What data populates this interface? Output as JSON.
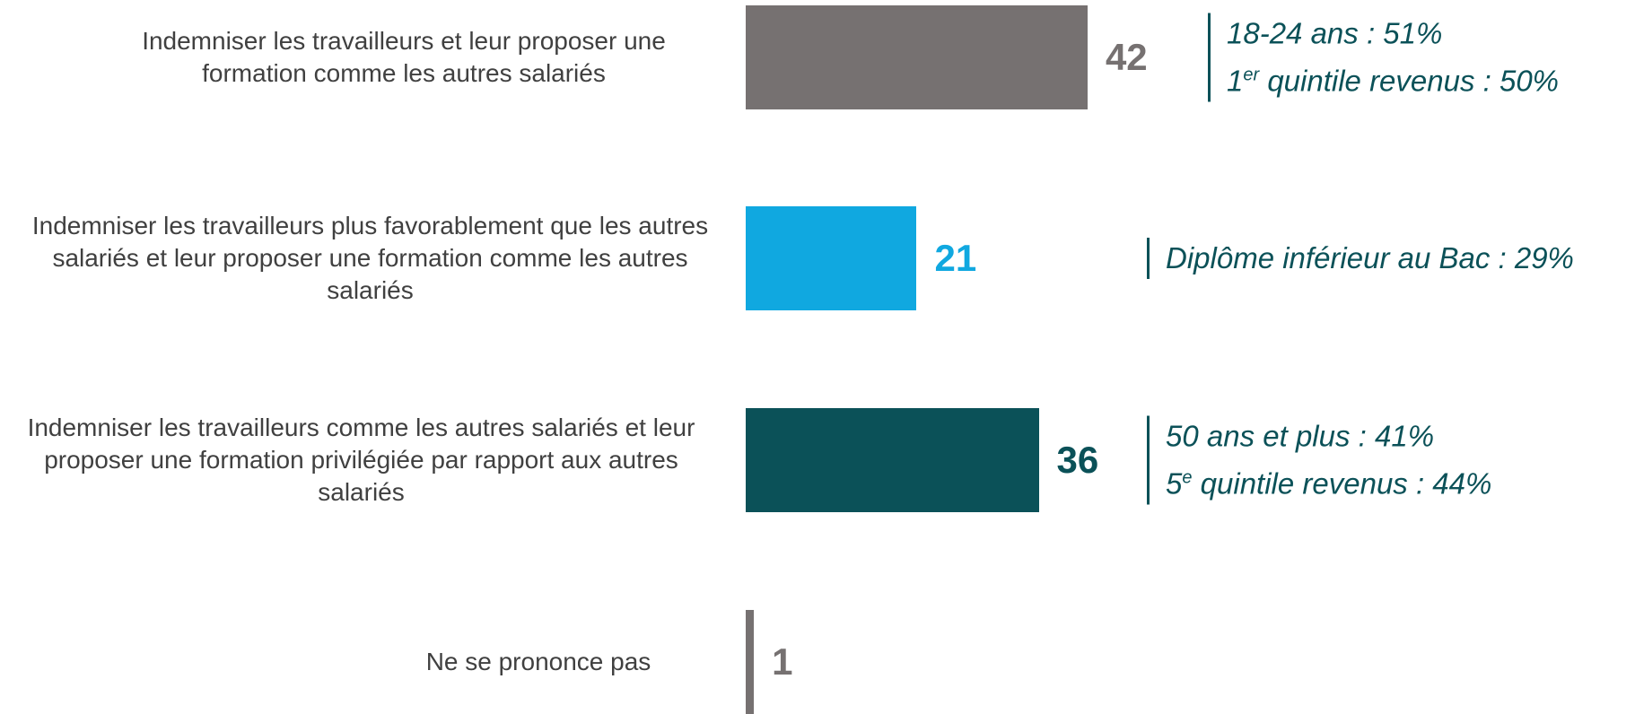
{
  "chart_data": {
    "type": "bar",
    "categories": [
      "Indemniser les travailleurs et leur proposer une formation comme les autres salariés",
      "Indemniser les travailleurs plus favorablement que les autres salariés et leur proposer une formation comme les autres salariés",
      "Indemniser les travailleurs comme les autres salariés et leur proposer une formation privilégiée par rapport aux autres salariés",
      "Ne se prononce pas"
    ],
    "values": [
      42,
      21,
      36,
      1
    ],
    "colors": [
      "#767171",
      "#10a8e0",
      "#0b5158",
      "#767171"
    ],
    "annotations": [
      [
        [
          {
            "text": "18-24 ans : 51%"
          }
        ],
        [
          {
            "text": "1"
          },
          {
            "sup": "er"
          },
          {
            "text": " quintile revenus : 50%"
          }
        ]
      ],
      [
        [
          {
            "text": "Diplôme inférieur au Bac : 29%"
          }
        ]
      ],
      [
        [
          {
            "text": "50 ans et plus : 41%"
          }
        ],
        [
          {
            "text": "5"
          },
          {
            "sup": "e"
          },
          {
            "text": " quintile revenus : 44%"
          }
        ]
      ],
      []
    ]
  }
}
